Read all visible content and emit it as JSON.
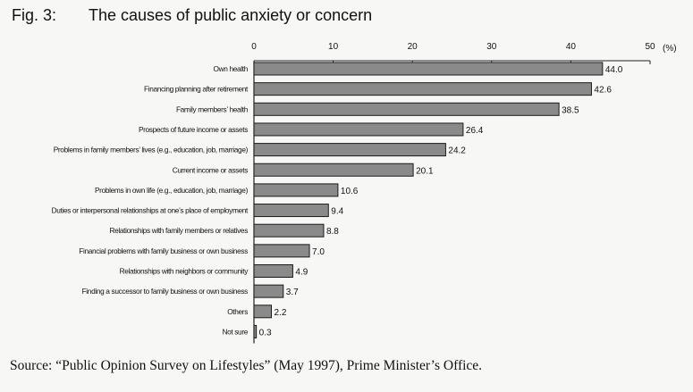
{
  "title_number": "Fig. 3:",
  "title_text": "The causes of public anxiety or concern",
  "source": "Source: “Public Opinion Survey on Lifestyles” (May 1997), Prime Minister’s Office.",
  "chart_data": {
    "type": "bar",
    "orientation": "horizontal",
    "title": "The causes of public anxiety or concern",
    "xlabel": "(%)",
    "ylabel": "",
    "xlim": [
      0,
      50
    ],
    "xticks": [
      "0",
      "10",
      "20",
      "30",
      "40",
      "50"
    ],
    "xtick_values": [
      0,
      10,
      20,
      30,
      40,
      50
    ],
    "unit_label": "(%)",
    "grid": false,
    "bar_color": "#8a8a8a",
    "categories": [
      "Own health",
      "Financing planning after retirement",
      "Family members’ health",
      "Prospects of future income or assets",
      "Problems in family members’ lives (e.g., education, job, marriage)",
      "Current income or assets",
      "Problems in own life (e.g., education, job, marriage)",
      "Duties or interpersonal relationships at one’s place of employment",
      "Relationships with family members or relatives",
      "Financial problems with family business or own business",
      "Relationships with neighbors or community",
      "Finding a successor to family business or own business",
      "Others",
      "Not sure"
    ],
    "values": [
      44.0,
      42.6,
      38.5,
      26.4,
      24.2,
      20.1,
      10.6,
      9.4,
      8.8,
      7.0,
      4.9,
      3.7,
      2.2,
      0.3
    ],
    "value_labels": [
      "44.0",
      "42.6",
      "38.5",
      "26.4",
      "24.2",
      "20.1",
      "10.6",
      "9.4",
      "8.8",
      "7.0",
      "4.9",
      "3.7",
      "2.2",
      "0.3"
    ]
  }
}
